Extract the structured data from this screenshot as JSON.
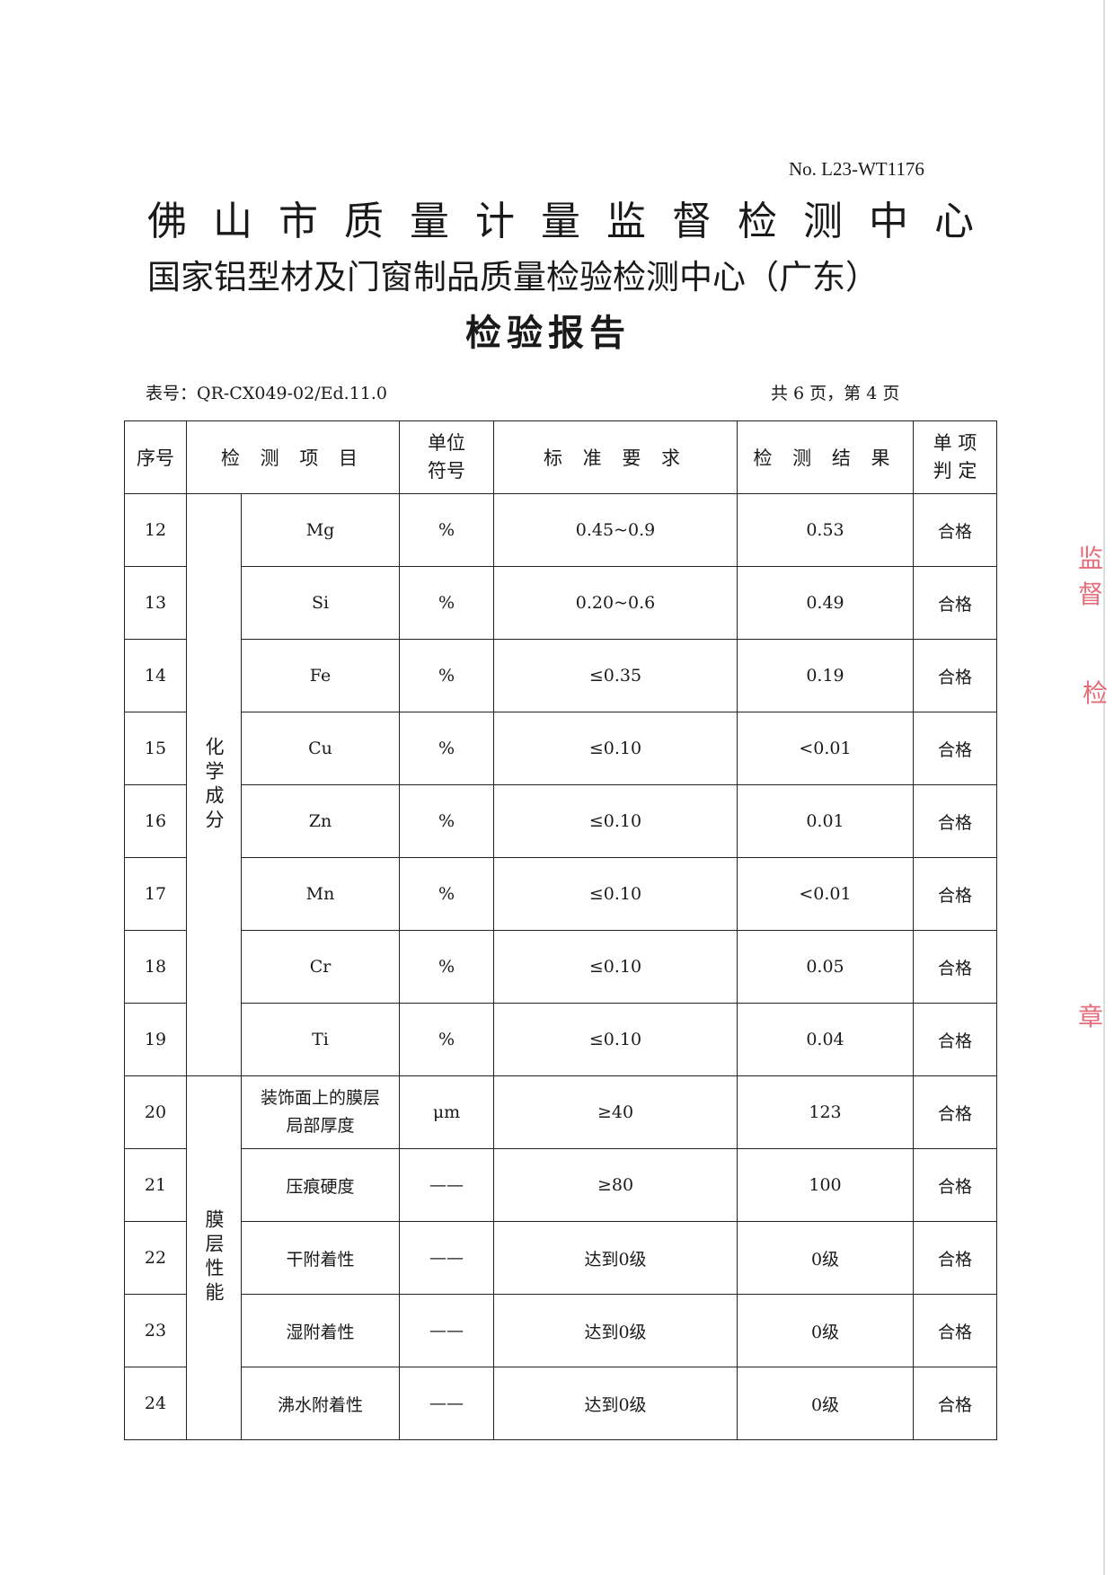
{
  "header": {
    "report_no": "No. L23-WT1176",
    "org_title": "佛山市质量计量监督检测中心",
    "org_subtitle": "国家铝型材及门窗制品质量检验检测中心（广东）",
    "doc_title": "检验报告",
    "form_no": "表号：QR-CX049-02/Ed.11.0",
    "pages": "共 6 页，第 4 页"
  },
  "table": {
    "columns": [
      "序号",
      "检 测 项 目",
      "单位符号",
      "标 准 要 求",
      "检 测 结 果",
      "单项判定"
    ],
    "column_lines": {
      "unit": [
        "单位",
        "符号"
      ],
      "verdict": [
        "单 项",
        "判 定"
      ]
    },
    "groups": [
      "化学成分",
      "膜层性能"
    ],
    "rows": [
      {
        "no": "12",
        "item": "Mg",
        "unit": "%",
        "req": "0.45~0.9",
        "result": "0.53",
        "verdict": "合格"
      },
      {
        "no": "13",
        "item": "Si",
        "unit": "%",
        "req": "0.20~0.6",
        "result": "0.49",
        "verdict": "合格"
      },
      {
        "no": "14",
        "item": "Fe",
        "unit": "%",
        "req": "≤0.35",
        "result": "0.19",
        "verdict": "合格"
      },
      {
        "no": "15",
        "item": "Cu",
        "unit": "%",
        "req": "≤0.10",
        "result": "<0.01",
        "verdict": "合格"
      },
      {
        "no": "16",
        "item": "Zn",
        "unit": "%",
        "req": "≤0.10",
        "result": "0.01",
        "verdict": "合格"
      },
      {
        "no": "17",
        "item": "Mn",
        "unit": "%",
        "req": "≤0.10",
        "result": "<0.01",
        "verdict": "合格"
      },
      {
        "no": "18",
        "item": "Cr",
        "unit": "%",
        "req": "≤0.10",
        "result": "0.05",
        "verdict": "合格"
      },
      {
        "no": "19",
        "item": "Ti",
        "unit": "%",
        "req": "≤0.10",
        "result": "0.04",
        "verdict": "合格"
      },
      {
        "no": "20",
        "item": "装饰面上的膜层局部厚度",
        "item_lines": [
          "装饰面上的膜层",
          "局部厚度"
        ],
        "unit": "μm",
        "req": "≥40",
        "result": "123",
        "verdict": "合格"
      },
      {
        "no": "21",
        "item": "压痕硬度",
        "unit": "——",
        "req": "≥80",
        "result": "100",
        "verdict": "合格"
      },
      {
        "no": "22",
        "item": "干附着性",
        "unit": "——",
        "req": "达到0级",
        "result": "0级",
        "verdict": "合格"
      },
      {
        "no": "23",
        "item": "湿附着性",
        "unit": "——",
        "req": "达到0级",
        "result": "0级",
        "verdict": "合格"
      },
      {
        "no": "24",
        "item": "沸水附着性",
        "unit": "——",
        "req": "达到0级",
        "result": "0级",
        "verdict": "合格"
      }
    ]
  },
  "stamp": {
    "color": "#e0485a",
    "fragments": [
      "监督",
      "检",
      "章"
    ]
  }
}
